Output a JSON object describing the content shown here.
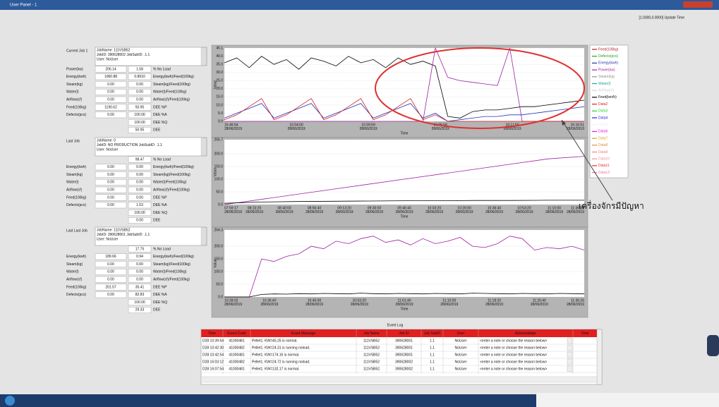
{
  "window": {
    "title": "User Panel - 1",
    "update": "[1.0000,0.0000] Update Time"
  },
  "jobs": [
    {
      "label": "Current Job 1",
      "info": [
        "JobName: 111VSB52",
        "JobID: 390628002 JobSubID: .1.1",
        "User: NoUser"
      ],
      "rows": [
        {
          "label": "Power(kw)",
          "v1": "206.14",
          "v2": "1.58",
          "unit": "% No Load"
        },
        {
          "label": "Energy(kwh)",
          "v1": "1060.88",
          "v2": "0.8910",
          "unit": "Energy(kwh)/Feed(100kg)"
        },
        {
          "label": "Steam(kg)",
          "v1": "0.00",
          "v2": "0.00",
          "unit": "Steam(kg)/Feed(100kg)"
        },
        {
          "label": "Water(l)",
          "v1": "0.00",
          "v2": "0.00",
          "unit": "Water(l)/Feed(100kg)"
        },
        {
          "label": "Airflow(cf)",
          "v1": "0.00",
          "v2": "0.00",
          "unit": "Airflow(cf)/Feed(100kg)"
        },
        {
          "label": "Feed(100kg)",
          "v1": "1190.62",
          "v2": "50.95",
          "unit": "DEE %P"
        },
        {
          "label": "Defects(pcs)",
          "v1": "0.00",
          "v2": "100.00",
          "unit": "DEE %A"
        },
        {
          "v2": "100.00",
          "unit": "DEE %Q"
        },
        {
          "v2": "50.95",
          "unit": "DEE"
        }
      ]
    },
    {
      "label": "Last Job",
      "info": [
        "JobName: 0",
        "JobID: NO PRODUCTION  JobSubID: .1.1",
        "User: NoUser"
      ],
      "rows": [
        {
          "v2": "98.47",
          "unit": "% No Load"
        },
        {
          "label": "Energy(kwh)",
          "v1": "0.00",
          "v2": "0.00",
          "unit": "Energy(kwh)/Feed(100kg)"
        },
        {
          "label": "Steam(kg)",
          "v1": "0.00",
          "v2": "0.00",
          "unit": "Steam(kg)/Feed(100kg)"
        },
        {
          "label": "Water(l)",
          "v1": "0.00",
          "v2": "0.00",
          "unit": "Water(l)/Feed(100kg)"
        },
        {
          "label": "Airflow(cf)",
          "v1": "0.00",
          "v2": "0.00",
          "unit": "Airflow(cf)/Feed(100kg)"
        },
        {
          "label": "Feed(100kg)",
          "v1": "0.00",
          "v2": "0.00",
          "unit": "DEE %P"
        },
        {
          "label": "Defects(pcs)",
          "v1": "0.00",
          "v2": "1.53",
          "unit": "DEE %A"
        },
        {
          "v2": "100.00",
          "unit": "DEE %Q"
        },
        {
          "v2": "0.00",
          "unit": "DEE"
        }
      ]
    },
    {
      "label": "Last Last Job",
      "info": [
        "JobName: 111VSB52",
        "JobID: 390628001 JobSubID: .1.1",
        "User: NoUser"
      ],
      "rows": [
        {
          "v2": "17.75",
          "unit": "% No Load"
        },
        {
          "label": "Energy(kwh)",
          "v1": "189.66",
          "v2": "0.94",
          "unit": "Energy(kwh)/Feed(100kg)"
        },
        {
          "label": "Steam(kg)",
          "v1": "0.00",
          "v2": "0.00",
          "unit": "Steam(kg)/Feed(100kg)"
        },
        {
          "label": "Water(l)",
          "v1": "0.00",
          "v2": "0.00",
          "unit": "Water(l)/Feed(100kg)"
        },
        {
          "label": "Airflow(cf)",
          "v1": "0.00",
          "v2": "0.00",
          "unit": "Airflow(cf)/Feed(100kg)"
        },
        {
          "label": "Feed(100kg)",
          "v1": "201.57",
          "v2": "35.41",
          "unit": "DEE %P"
        },
        {
          "label": "Defects(pcs)",
          "v1": "0.00",
          "v2": "82.83",
          "unit": "DEE %A"
        },
        {
          "v2": "100.00",
          "unit": "DEE %Q"
        },
        {
          "v2": "29.33",
          "unit": "DEE"
        }
      ]
    }
  ],
  "chart_data": [
    {
      "type": "line",
      "ylabel": "Value",
      "xlabel": "Time",
      "grid": true,
      "ylim": [
        0,
        45.1
      ],
      "yticks": [
        {
          "value": 0,
          "label": "0.0"
        },
        {
          "value": 5,
          "label": "5.0"
        },
        {
          "value": 10,
          "label": "10.0"
        },
        {
          "value": 15,
          "label": "15.0"
        },
        {
          "value": 20,
          "label": "20.0"
        },
        {
          "value": 25,
          "label": "25.0"
        },
        {
          "value": 30,
          "label": "30.0"
        },
        {
          "value": 35,
          "label": "35.0"
        },
        {
          "value": 40,
          "label": "40.0"
        },
        45.1
      ],
      "x_labels": [
        {
          "time": "15:46:54",
          "date": "28/06/2019"
        },
        {
          "time": "15:54:00",
          "date": "28/06/2019"
        },
        {
          "time": "15:59:59",
          "date": "28/06/2019"
        },
        {
          "time": "16:05:58",
          "date": "28/06/2019"
        },
        {
          "time": "16:11:50",
          "date": "28/06/2019"
        },
        {
          "time": "16:16:51",
          "date": "28/06/2019"
        }
      ],
      "series": [
        {
          "color": "#000000",
          "values": [
            36,
            39,
            33,
            40,
            35,
            38,
            32,
            39,
            37,
            34,
            40,
            36,
            38,
            33,
            39,
            35,
            37,
            34,
            3,
            2,
            6,
            7,
            7,
            8,
            9,
            9,
            10,
            11,
            12,
            13
          ]
        },
        {
          "color": "#a020a0",
          "values": [
            0,
            0,
            0,
            0,
            0,
            0,
            0,
            0,
            0,
            0,
            0,
            0,
            0,
            0,
            0,
            0,
            0,
            45.1,
            27,
            25,
            24,
            23,
            22,
            45.1,
            0,
            0,
            0,
            0,
            0,
            0
          ]
        },
        {
          "color": "#2030c0",
          "values": [
            2,
            5,
            8,
            11,
            2,
            5,
            8,
            11,
            2,
            5,
            8,
            11,
            2,
            5,
            8,
            11,
            2,
            5,
            0,
            1,
            2,
            3,
            3,
            4,
            4,
            5,
            6,
            7,
            8,
            9
          ]
        },
        {
          "color": "#d02020",
          "values": [
            1,
            4,
            9,
            14,
            1,
            4,
            9,
            14,
            1,
            4,
            9,
            14,
            1,
            4,
            9,
            14,
            1,
            4,
            0,
            0,
            0,
            0,
            0,
            0,
            0,
            0,
            0,
            0,
            0,
            0
          ]
        }
      ]
    },
    {
      "type": "line",
      "ylabel": "Value",
      "xlabel": "Time",
      "grid": true,
      "ylim": [
        0,
        255.7
      ],
      "yticks": [
        {
          "value": 0,
          "label": "0.0"
        },
        {
          "value": 50,
          "label": "50.0"
        },
        {
          "value": 100,
          "label": "100.0"
        },
        {
          "value": 150,
          "label": "150.0"
        },
        {
          "value": 200,
          "label": "200.0"
        },
        255.7
      ],
      "x_labels": [
        {
          "time": "07:59:17",
          "date": "28/06/2019"
        },
        {
          "time": "08:23:20",
          "date": "28/06/2019"
        },
        {
          "time": "08:40:00",
          "date": "28/06/2019"
        },
        {
          "time": "08:56:40",
          "date": "28/06/2019"
        },
        {
          "time": "09:13:20",
          "date": "28/06/2019"
        },
        {
          "time": "09:30:00",
          "date": "28/06/2019"
        },
        {
          "time": "09:46:40",
          "date": "28/06/2019"
        },
        {
          "time": "10:03:20",
          "date": "28/06/2019"
        },
        {
          "time": "10:20:00",
          "date": "28/06/2019"
        },
        {
          "time": "10:36:40",
          "date": "28/06/2019"
        },
        {
          "time": "10:53:20",
          "date": "28/06/2019"
        },
        {
          "time": "11:10:00",
          "date": "28/06/2019"
        },
        {
          "time": "11:36:29",
          "date": "28/06/2019"
        }
      ],
      "series": [
        {
          "color": "#a020a0",
          "values": [
            0,
            20,
            40,
            60,
            80,
            100,
            120,
            140,
            160,
            180,
            190
          ]
        },
        {
          "color": "#000000",
          "values": [
            5,
            10,
            12,
            13,
            14,
            15,
            15,
            16,
            16,
            17,
            17
          ]
        }
      ]
    },
    {
      "type": "line",
      "ylabel": "Value",
      "xlabel": "Time",
      "grid": true,
      "ylim": [
        0,
        264.3
      ],
      "yticks": [
        {
          "value": 0,
          "label": "0.0"
        },
        {
          "value": 50,
          "label": "50.0"
        },
        {
          "value": 100,
          "label": "100.0"
        },
        {
          "value": 150,
          "label": "150.0"
        },
        {
          "value": 200,
          "label": "200.0"
        },
        264.3
      ],
      "x_labels": [
        {
          "time": "10:28:02",
          "date": "28/06/2019"
        },
        {
          "time": "10:36:40",
          "date": "28/06/2019"
        },
        {
          "time": "10:45:00",
          "date": "28/06/2019"
        },
        {
          "time": "10:53:20",
          "date": "28/06/2019"
        },
        {
          "time": "11:01:40",
          "date": "28/06/2019"
        },
        {
          "time": "11:10:00",
          "date": "28/06/2019"
        },
        {
          "time": "11:18:20",
          "date": "28/06/2019"
        },
        {
          "time": "11:26:40",
          "date": "28/06/2019"
        },
        {
          "time": "11:36:26",
          "date": "28/06/2019"
        }
      ],
      "series": [
        {
          "color": "#a020a0",
          "values": [
            0,
            0,
            0,
            150,
            140,
            160,
            170,
            200,
            190,
            220,
            210,
            230,
            240,
            215,
            225,
            205,
            230,
            210,
            220,
            235,
            200,
            195,
            210,
            240,
            230,
            185,
            195,
            190,
            200,
            185
          ]
        },
        {
          "color": "#000000",
          "values": [
            0,
            0,
            0,
            10,
            12,
            11,
            13,
            12,
            14,
            13,
            12,
            15,
            13,
            12,
            14,
            13,
            12,
            14,
            13,
            12,
            15,
            14,
            13,
            12,
            14,
            13,
            12,
            14,
            13,
            12
          ]
        }
      ]
    }
  ],
  "legend": [
    {
      "name": "Feed(100kg)",
      "color": "#b02020"
    },
    {
      "name": "Defects(pcs)",
      "color": "#20a020"
    },
    {
      "name": "Energy(kwh)",
      "color": "#2030a0"
    },
    {
      "name": "Power(kw)",
      "color": "#a020a0"
    },
    {
      "name": "Steam(kg)",
      "color": "#909090"
    },
    {
      "name": "Water(l)",
      "color": "#20a0a0"
    },
    {
      "name": "Airflow(cf)",
      "color": "#d0d0d0"
    },
    {
      "name": "Feed(ton/h)",
      "color": "#000000"
    },
    {
      "name": "Data2",
      "color": "#e02020"
    },
    {
      "name": "Data3",
      "color": "#20d020"
    },
    {
      "name": "Data4",
      "color": "#2020e0"
    },
    {
      "name": "Data5",
      "color": "#f0f0f0"
    },
    {
      "name": "Data6",
      "color": "#e020e0"
    },
    {
      "name": "Data7",
      "color": "#e0a020"
    },
    {
      "name": "Data8",
      "color": "#e09040"
    },
    {
      "name": "Data9",
      "color": "#f08080"
    },
    {
      "name": "Data10",
      "color": "#f09090"
    },
    {
      "name": "Data11",
      "color": "#e03030"
    },
    {
      "name": "Data12",
      "color": "#f070a0"
    }
  ],
  "annotation": "เครื่องจักรมีปัญหา",
  "event_log": {
    "title": "Event Log",
    "columns": [
      "Time",
      "Event Code",
      "Event Message",
      "Job Name",
      "Job ID",
      "Job SubID",
      "User",
      "Acknowledge",
      "Time"
    ],
    "rows": [
      [
        "D28 10:39:54",
        "41000481",
        "Pellet1. KW=45.25 is normal.",
        "111VSB52",
        "390628001",
        "1.1",
        "NoUser",
        "<enter a note or choose the reason below>"
      ],
      [
        "D28 10:42:30",
        "41000482",
        "Pellet1. KW=24.31 is running noload.",
        "111VSB52",
        "390628001",
        "1.1",
        "NoUser",
        "<enter a note or choose the reason below>"
      ],
      [
        "D28 10:42:54",
        "41000481",
        "Pellet1. KW=174.16 is normal.",
        "111VSB52",
        "390628001",
        "1.1",
        "NoUser",
        "<enter a note or choose the reason below>"
      ],
      [
        "D28 16:03:12",
        "41000482",
        "Pellet1. KW=24.72 is running noload.",
        "111VSB52",
        "390628002",
        "1.1",
        "NoUser",
        "<enter a note or choose the reason below>"
      ],
      [
        "D28 16:07:54",
        "41000481",
        "Pellet1. KW=132.17 is normal.",
        "111VSB52",
        "390628002",
        "1.1",
        "NoUser",
        "<enter a note or choose the reason below>"
      ]
    ]
  }
}
